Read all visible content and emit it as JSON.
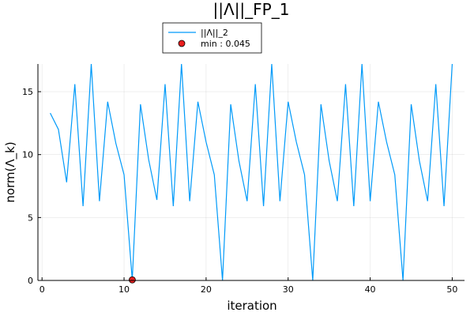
{
  "chart_data": {
    "type": "line",
    "title": "||Λ||_FP_1",
    "xlabel": "iteration",
    "ylabel": "norm(Λ_k)",
    "xlim": [
      -0.5,
      51.5
    ],
    "ylim": [
      0,
      17.2
    ],
    "xticks": [
      0,
      10,
      20,
      30,
      40,
      50
    ],
    "yticks": [
      0,
      5,
      10,
      15
    ],
    "grid": true,
    "legend_position": "top-center",
    "series": [
      {
        "name": "||Λ||_2",
        "kind": "line",
        "color": "#009af9",
        "x": [
          1,
          2,
          3,
          4,
          5,
          6,
          7,
          8,
          9,
          10,
          11,
          12,
          13,
          14,
          15,
          16,
          17,
          18,
          19,
          20,
          21,
          22,
          23,
          24,
          25,
          26,
          27,
          28,
          29,
          30,
          31,
          32,
          33,
          34,
          35,
          36,
          37,
          38,
          39,
          40,
          41,
          42,
          43,
          44,
          45,
          46,
          47,
          48,
          49,
          50
        ],
        "y": [
          13.3,
          12.0,
          7.8,
          15.6,
          5.9,
          17.2,
          6.3,
          14.2,
          10.9,
          8.4,
          0.045,
          14.0,
          9.6,
          6.4,
          15.6,
          5.9,
          17.2,
          6.3,
          14.2,
          11.0,
          8.4,
          0.0,
          14.0,
          9.5,
          6.3,
          15.6,
          5.9,
          17.2,
          6.3,
          14.2,
          11.0,
          8.4,
          0.0,
          14.0,
          9.5,
          6.3,
          15.6,
          5.9,
          17.2,
          6.3,
          14.2,
          11.0,
          8.4,
          0.0,
          14.0,
          9.5,
          6.3,
          15.6,
          5.9,
          17.2
        ]
      },
      {
        "name": "min : 0.045",
        "kind": "scatter",
        "color": "#e81e1e",
        "x": [
          11
        ],
        "y": [
          0.045
        ]
      }
    ]
  }
}
